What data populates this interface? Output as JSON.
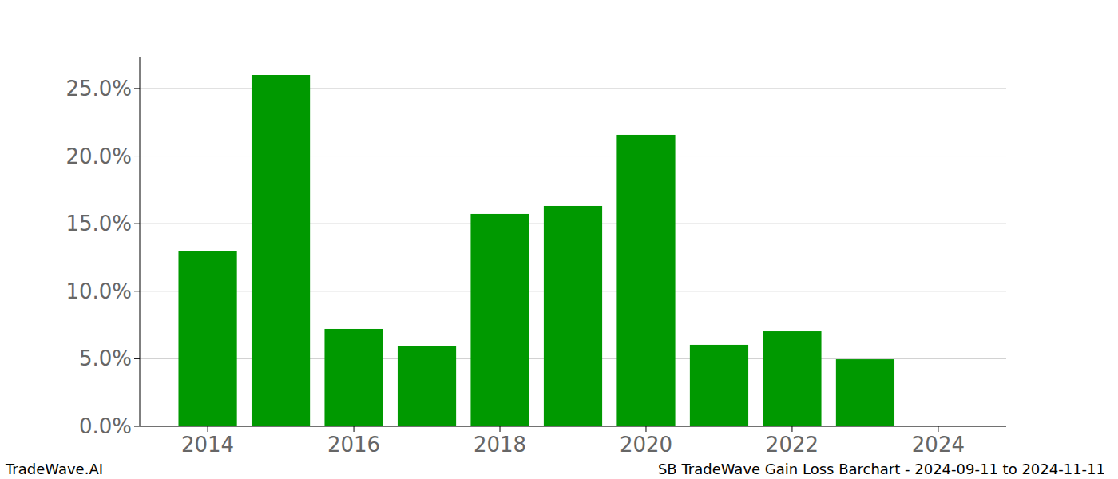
{
  "chart_data": {
    "type": "bar",
    "title": "SB TradeWave Gain Loss Barchart - 2024-09-11 to 2024-11-11",
    "source": "TradeWave.AI",
    "x": [
      2014,
      2015,
      2016,
      2017,
      2018,
      2019,
      2020,
      2021,
      2022,
      2023
    ],
    "values": [
      13.0,
      26.0,
      7.21,
      5.91,
      15.72,
      16.31,
      21.57,
      6.03,
      7.03,
      4.96
    ],
    "color": "#009900",
    "xlim": [
      2013.07,
      2024.93
    ],
    "xticks": [
      2014,
      2016,
      2018,
      2020,
      2022,
      2024
    ],
    "ylim": [
      0,
      27.3
    ],
    "yticks": [
      {
        "value": 0,
        "label": "0.0%"
      },
      {
        "value": 5,
        "label": "5.0%"
      },
      {
        "value": 10,
        "label": "10.0%"
      },
      {
        "value": 15,
        "label": "15.0%"
      },
      {
        "value": 20,
        "label": "20.0%"
      },
      {
        "value": 25,
        "label": "25.0%"
      }
    ],
    "grid": true
  }
}
